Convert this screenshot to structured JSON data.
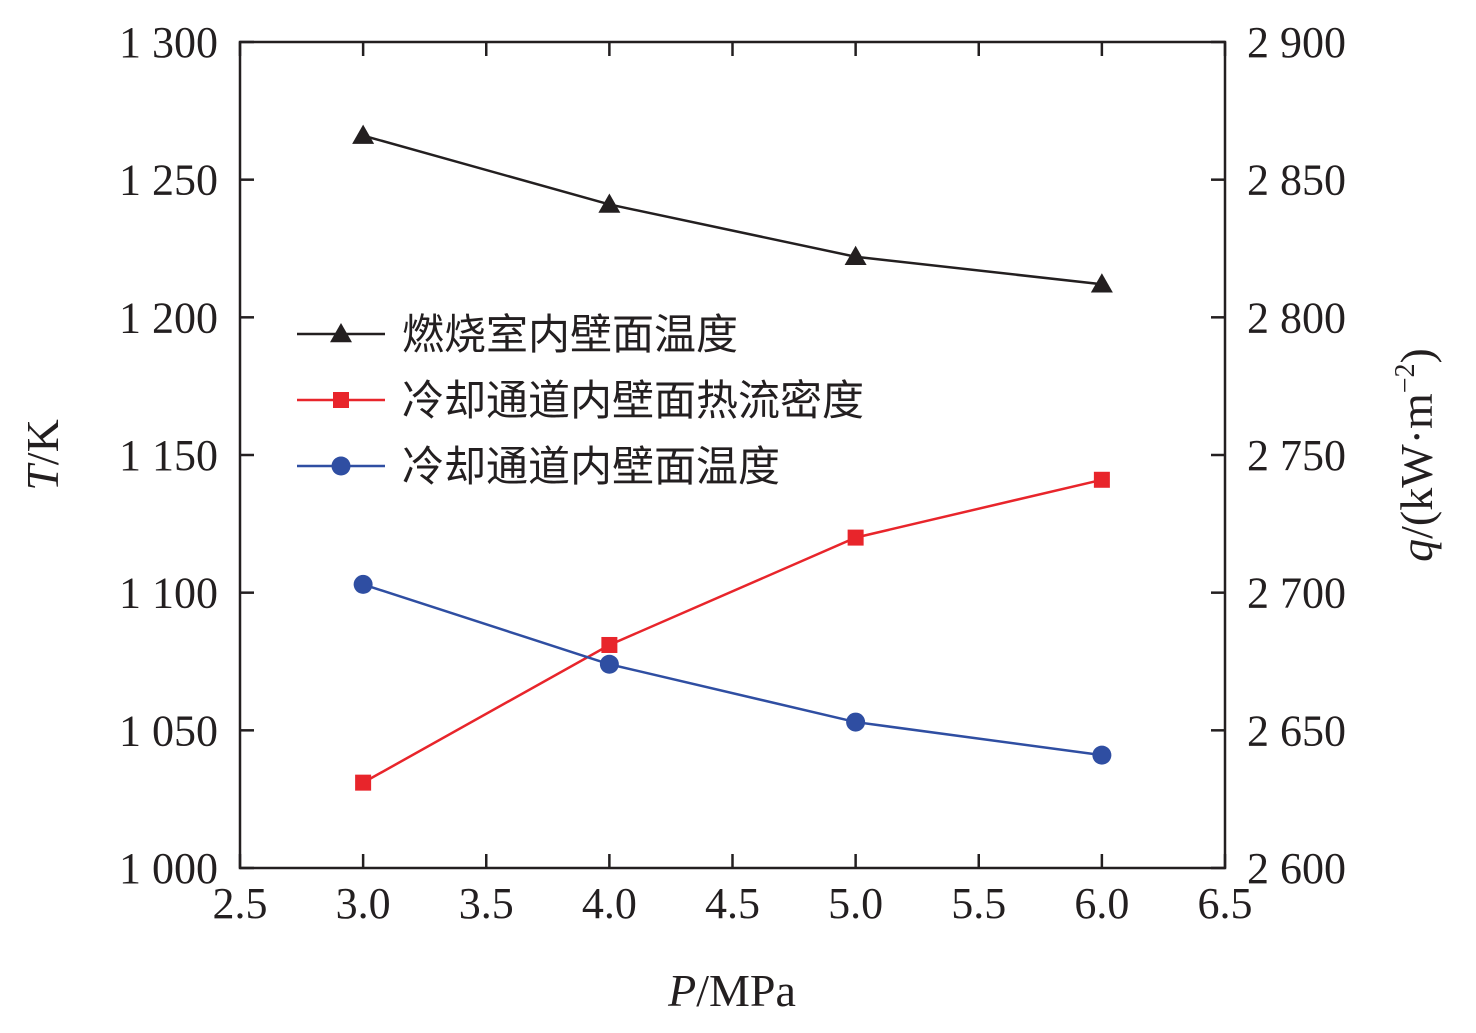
{
  "chart_data": {
    "type": "line",
    "x_axis": {
      "label_italic": "P",
      "label_rest": "/MPa",
      "range": [
        2.5,
        6.5
      ],
      "ticks": [
        2.5,
        3.0,
        3.5,
        4.0,
        4.5,
        5.0,
        5.5,
        6.0,
        6.5
      ],
      "tick_labels": [
        "2.5",
        "3.0",
        "3.5",
        "4.0",
        "4.5",
        "5.0",
        "5.5",
        "6.0",
        "6.5"
      ]
    },
    "y_left": {
      "label_italic": "T",
      "label_rest": "/K",
      "range": [
        1000,
        1300
      ],
      "ticks": [
        1000,
        1050,
        1100,
        1150,
        1200,
        1250,
        1300
      ],
      "tick_labels": [
        "1 000",
        "1 050",
        "1 100",
        "1 150",
        "1 200",
        "1 250",
        "1 300"
      ]
    },
    "y_right": {
      "label_italic": "q",
      "label_rest": "/(kW·m",
      "label_sup": "−2",
      "label_close": ")",
      "range": [
        2600,
        2900
      ],
      "ticks": [
        2600,
        2650,
        2700,
        2750,
        2800,
        2850,
        2900
      ],
      "tick_labels": [
        "2 600",
        "2 650",
        "2 700",
        "2 750",
        "2 800",
        "2 850",
        "2 900"
      ]
    },
    "x": [
      3.0,
      4.0,
      5.0,
      6.0
    ],
    "series": [
      {
        "name": "燃烧室内壁面温度",
        "axis": "left",
        "marker": "triangle",
        "color": "#231f20",
        "values": [
          1266,
          1241,
          1222,
          1212
        ]
      },
      {
        "name": "冷却通道内壁面热流密度",
        "axis": "right",
        "marker": "square",
        "color": "#e8252b",
        "values": [
          2631,
          2681,
          2720,
          2741
        ]
      },
      {
        "name": "冷却通道内壁面温度",
        "axis": "left",
        "marker": "circle",
        "color": "#2f4ea2",
        "values": [
          1103,
          1074,
          1053,
          1041
        ]
      }
    ],
    "legend_position": "center-left"
  }
}
